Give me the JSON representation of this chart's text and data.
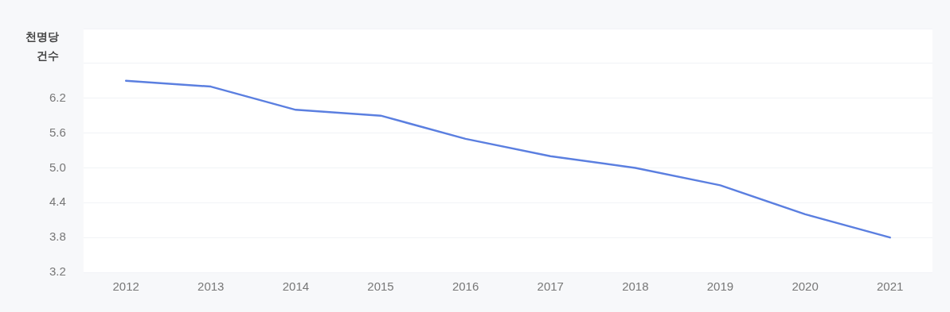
{
  "chart_data": {
    "type": "line",
    "ylabel": "천명당 건수",
    "categories": [
      "2012",
      "2013",
      "2014",
      "2015",
      "2016",
      "2017",
      "2018",
      "2019",
      "2020",
      "2021"
    ],
    "series": [
      {
        "color": "#5b7fe0",
        "values": [
          6.5,
          6.4,
          6.0,
          5.9,
          5.5,
          5.2,
          5.0,
          4.7,
          4.2,
          3.8
        ]
      }
    ],
    "ylim": [
      3.2,
      7.4
    ],
    "yticks": [
      3.2,
      3.8,
      4.4,
      {
        "value": 5.0,
        "label": "5.0"
      },
      5.6,
      6.2,
      {
        "value": 6.8,
        "label": null
      },
      {
        "value": 7.4,
        "label": null
      }
    ],
    "grid": "y",
    "legend": false,
    "marker": "none",
    "line_style": "solid"
  }
}
